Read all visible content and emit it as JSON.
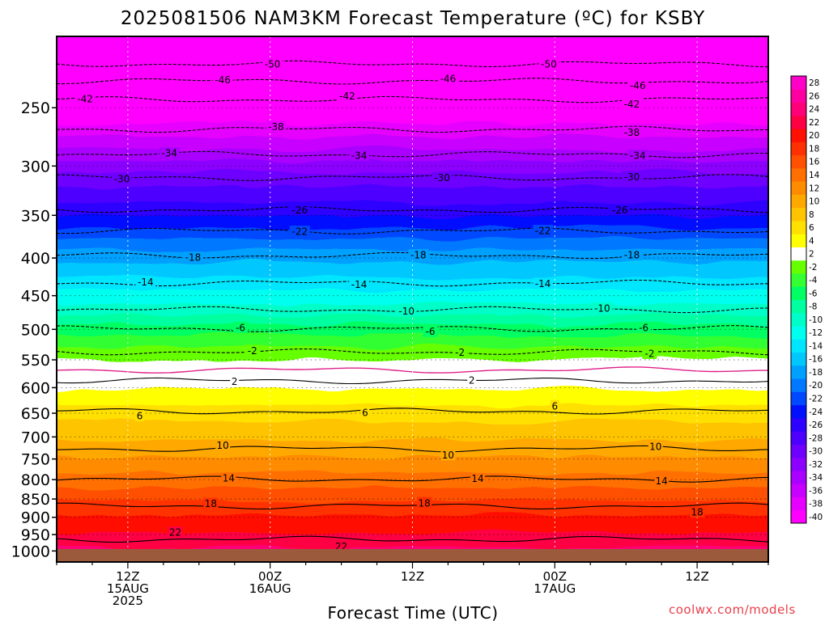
{
  "chart_data": {
    "type": "heatmap",
    "title": "2025081506 NAM3KM Forecast Temperature (ºC) for KSBY",
    "xlabel": "Forecast Time (UTC)",
    "ylabel": "",
    "y_scale": "log",
    "y_axis_reversed": true,
    "ylim": [
      1035,
      200
    ],
    "y_ticks": [
      250,
      300,
      350,
      400,
      450,
      500,
      550,
      600,
      650,
      700,
      750,
      800,
      850,
      900,
      950,
      1000
    ],
    "x_range_hours": [
      0,
      60
    ],
    "x_ticks": [
      {
        "hour": 6,
        "labels": [
          "12Z",
          "15AUG",
          "2025"
        ]
      },
      {
        "hour": 18,
        "labels": [
          "00Z",
          "16AUG"
        ]
      },
      {
        "hour": 30,
        "labels": [
          "12Z"
        ]
      },
      {
        "hour": 42,
        "labels": [
          "00Z",
          "17AUG"
        ]
      },
      {
        "hour": 54,
        "labels": [
          "12Z"
        ]
      }
    ],
    "colorbar": {
      "levels": [
        -40,
        -38,
        -36,
        -34,
        -32,
        -30,
        -28,
        -26,
        -24,
        -22,
        -20,
        -18,
        -16,
        -14,
        -12,
        -10,
        -8,
        -6,
        -4,
        -2,
        2,
        4,
        6,
        8,
        10,
        12,
        14,
        16,
        18,
        20,
        22,
        24,
        26,
        28
      ],
      "colors": [
        "#ff00ff",
        "#e600ff",
        "#c800ff",
        "#aa00ff",
        "#8c00ff",
        "#6e00ff",
        "#4d00ff",
        "#2d00ff",
        "#0010ff",
        "#0048ff",
        "#0078ff",
        "#00a0ff",
        "#00c8ff",
        "#00e6ff",
        "#00ffee",
        "#00ffc8",
        "#00ffa0",
        "#00ff64",
        "#33ff33",
        "#66ff00",
        "#ffffff",
        "#ffff00",
        "#ffe000",
        "#ffc400",
        "#ffa800",
        "#ff8c00",
        "#ff7000",
        "#ff5000",
        "#ff3000",
        "#ff1000",
        "#ff0044",
        "#ff0078",
        "#ff00a0",
        "#ff00c8"
      ]
    },
    "isotherm_labels": [
      {
        "value": -50,
        "points": [
          [
            18.2,
            218
          ],
          [
            41.5,
            218
          ]
        ]
      },
      {
        "value": -46,
        "points": [
          [
            14,
            229
          ],
          [
            33,
            228
          ],
          [
            49,
            233
          ]
        ]
      },
      {
        "value": -42,
        "points": [
          [
            2.4,
            243
          ],
          [
            24.5,
            241
          ],
          [
            48.5,
            247
          ]
        ]
      },
      {
        "value": -38,
        "points": [
          [
            18.5,
            265
          ],
          [
            48.5,
            270
          ]
        ]
      },
      {
        "value": -34,
        "points": [
          [
            9.5,
            288
          ],
          [
            25.5,
            290
          ],
          [
            49,
            290
          ]
        ]
      },
      {
        "value": -30,
        "points": [
          [
            5.5,
            312
          ],
          [
            32.5,
            311
          ],
          [
            48.5,
            310
          ]
        ]
      },
      {
        "value": -26,
        "points": [
          [
            20.5,
            344
          ],
          [
            47.5,
            344
          ]
        ]
      },
      {
        "value": -22,
        "points": [
          [
            20.5,
            368
          ],
          [
            41,
            367
          ]
        ]
      },
      {
        "value": -18,
        "points": [
          [
            11.5,
            399
          ],
          [
            30.5,
            396
          ],
          [
            48.5,
            396
          ]
        ]
      },
      {
        "value": -14,
        "points": [
          [
            7.5,
            431
          ],
          [
            25.5,
            434
          ],
          [
            41,
            433
          ]
        ]
      },
      {
        "value": -10,
        "points": [
          [
            29.5,
            472
          ],
          [
            46,
            468
          ]
        ]
      },
      {
        "value": -6,
        "points": [
          [
            15.5,
            497
          ],
          [
            31.5,
            503
          ],
          [
            49.5,
            497
          ]
        ]
      },
      {
        "value": -2,
        "points": [
          [
            16.5,
            534
          ],
          [
            34,
            537
          ],
          [
            50,
            539
          ]
        ]
      },
      {
        "value": 2,
        "points": [
          [
            15,
            588
          ],
          [
            35,
            586
          ]
        ]
      },
      {
        "value": 6,
        "points": [
          [
            7,
            655
          ],
          [
            26,
            648
          ],
          [
            42,
            635
          ]
        ]
      },
      {
        "value": 10,
        "points": [
          [
            14,
            718
          ],
          [
            33,
            740
          ],
          [
            50.5,
            721
          ]
        ]
      },
      {
        "value": 14,
        "points": [
          [
            14.5,
            796
          ],
          [
            35.5,
            797
          ],
          [
            51,
            803
          ]
        ]
      },
      {
        "value": 18,
        "points": [
          [
            13,
            862
          ],
          [
            31,
            860
          ],
          [
            54,
            885
          ]
        ]
      },
      {
        "value": 22,
        "points": [
          [
            10,
            943
          ],
          [
            24,
            985
          ]
        ]
      }
    ],
    "credit": "coolwx.com/models"
  }
}
